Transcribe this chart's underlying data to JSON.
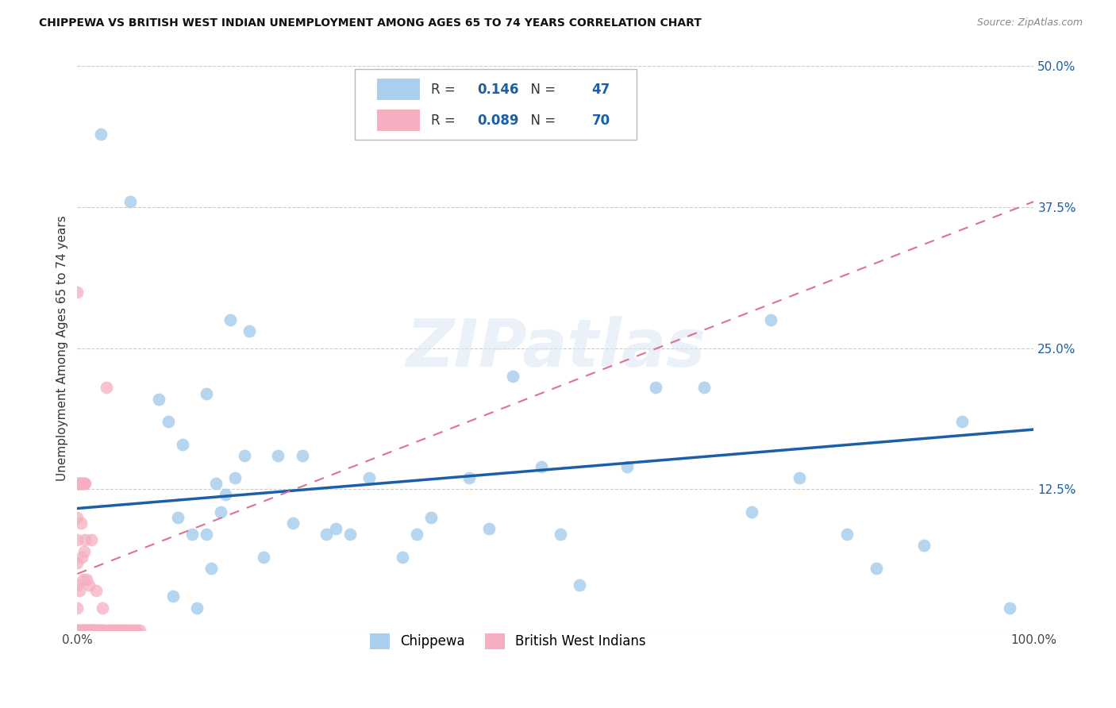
{
  "title": "CHIPPEWA VS BRITISH WEST INDIAN UNEMPLOYMENT AMONG AGES 65 TO 74 YEARS CORRELATION CHART",
  "source": "Source: ZipAtlas.com",
  "ylabel": "Unemployment Among Ages 65 to 74 years",
  "xlim": [
    0,
    1.0
  ],
  "ylim": [
    0,
    0.5
  ],
  "chippewa_R": 0.146,
  "chippewa_N": 47,
  "bwi_R": 0.089,
  "bwi_N": 70,
  "chippewa_color": "#aacfee",
  "bwi_color": "#f5afc0",
  "chippewa_line_color": "#1a5fa8",
  "bwi_line_color": "#e07090",
  "grid_color": "#cccccc",
  "chippewa_x": [
    0.025,
    0.055,
    0.085,
    0.095,
    0.1,
    0.105,
    0.11,
    0.12,
    0.125,
    0.135,
    0.14,
    0.145,
    0.15,
    0.155,
    0.16,
    0.165,
    0.175,
    0.18,
    0.195,
    0.21,
    0.225,
    0.235,
    0.26,
    0.27,
    0.285,
    0.305,
    0.34,
    0.355,
    0.37,
    0.41,
    0.43,
    0.455,
    0.485,
    0.505,
    0.525,
    0.575,
    0.605,
    0.655,
    0.705,
    0.725,
    0.755,
    0.805,
    0.835,
    0.885,
    0.925,
    0.975,
    0.135
  ],
  "chippewa_y": [
    0.44,
    0.38,
    0.205,
    0.185,
    0.03,
    0.1,
    0.165,
    0.085,
    0.02,
    0.085,
    0.055,
    0.13,
    0.105,
    0.12,
    0.275,
    0.135,
    0.155,
    0.265,
    0.065,
    0.155,
    0.095,
    0.155,
    0.085,
    0.09,
    0.085,
    0.135,
    0.065,
    0.085,
    0.1,
    0.135,
    0.09,
    0.225,
    0.145,
    0.085,
    0.04,
    0.145,
    0.215,
    0.215,
    0.105,
    0.275,
    0.135,
    0.085,
    0.055,
    0.075,
    0.185,
    0.02,
    0.21
  ],
  "bwi_x": [
    0.0,
    0.0,
    0.0,
    0.0,
    0.0,
    0.0,
    0.0,
    0.0,
    0.0,
    0.0,
    0.002,
    0.003,
    0.004,
    0.004,
    0.005,
    0.005,
    0.006,
    0.006,
    0.007,
    0.007,
    0.008,
    0.008,
    0.009,
    0.01,
    0.01,
    0.011,
    0.012,
    0.012,
    0.013,
    0.014,
    0.015,
    0.015,
    0.016,
    0.017,
    0.018,
    0.019,
    0.02,
    0.02,
    0.021,
    0.022,
    0.023,
    0.025,
    0.026,
    0.027,
    0.028,
    0.03,
    0.032,
    0.034,
    0.036,
    0.038,
    0.04,
    0.042,
    0.044,
    0.046,
    0.048,
    0.05,
    0.052,
    0.055,
    0.058,
    0.06,
    0.062,
    0.065,
    0.001,
    0.002,
    0.003,
    0.004,
    0.005,
    0.006,
    0.007,
    0.008
  ],
  "bwi_y": [
    0.0,
    0.0,
    0.0,
    0.02,
    0.04,
    0.06,
    0.08,
    0.1,
    0.13,
    0.3,
    0.035,
    0.0,
    0.0,
    0.095,
    0.0,
    0.065,
    0.0,
    0.045,
    0.0,
    0.07,
    0.0,
    0.08,
    0.0,
    0.0,
    0.045,
    0.0,
    0.0,
    0.04,
    0.0,
    0.0,
    0.0,
    0.08,
    0.0,
    0.0,
    0.0,
    0.0,
    0.0,
    0.035,
    0.0,
    0.0,
    0.0,
    0.0,
    0.02,
    0.0,
    0.0,
    0.215,
    0.0,
    0.0,
    0.0,
    0.0,
    0.0,
    0.0,
    0.0,
    0.0,
    0.0,
    0.0,
    0.0,
    0.0,
    0.0,
    0.0,
    0.0,
    0.0,
    0.13,
    0.13,
    0.13,
    0.13,
    0.13,
    0.13,
    0.13,
    0.13
  ]
}
